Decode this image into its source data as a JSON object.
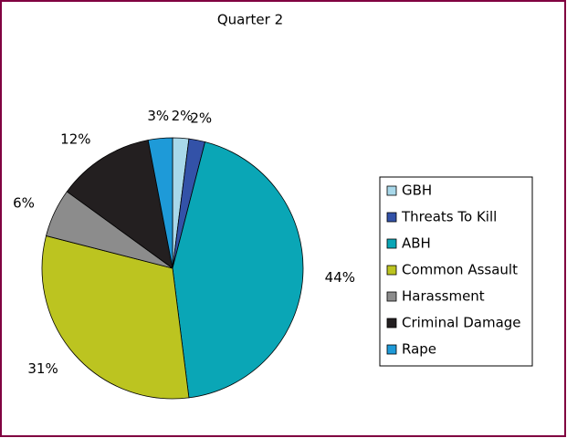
{
  "chart_data": {
    "type": "pie",
    "title": "Quarter 2",
    "categories": [
      "GBH",
      "Threats To Kill",
      "ABH",
      "Common Assault",
      "Harassment",
      "Criminal Damage",
      "Rape"
    ],
    "values": [
      2,
      2,
      44,
      31,
      6,
      12,
      3
    ],
    "value_labels": [
      "2%",
      "2%",
      "44%",
      "31%",
      "6%",
      "12%",
      "3%"
    ],
    "colors": [
      "#a8d8ea",
      "#3352a8",
      "#0aa6b6",
      "#bcc420",
      "#8c8c8c",
      "#231f20",
      "#1e9ad8"
    ],
    "legend": "right"
  }
}
